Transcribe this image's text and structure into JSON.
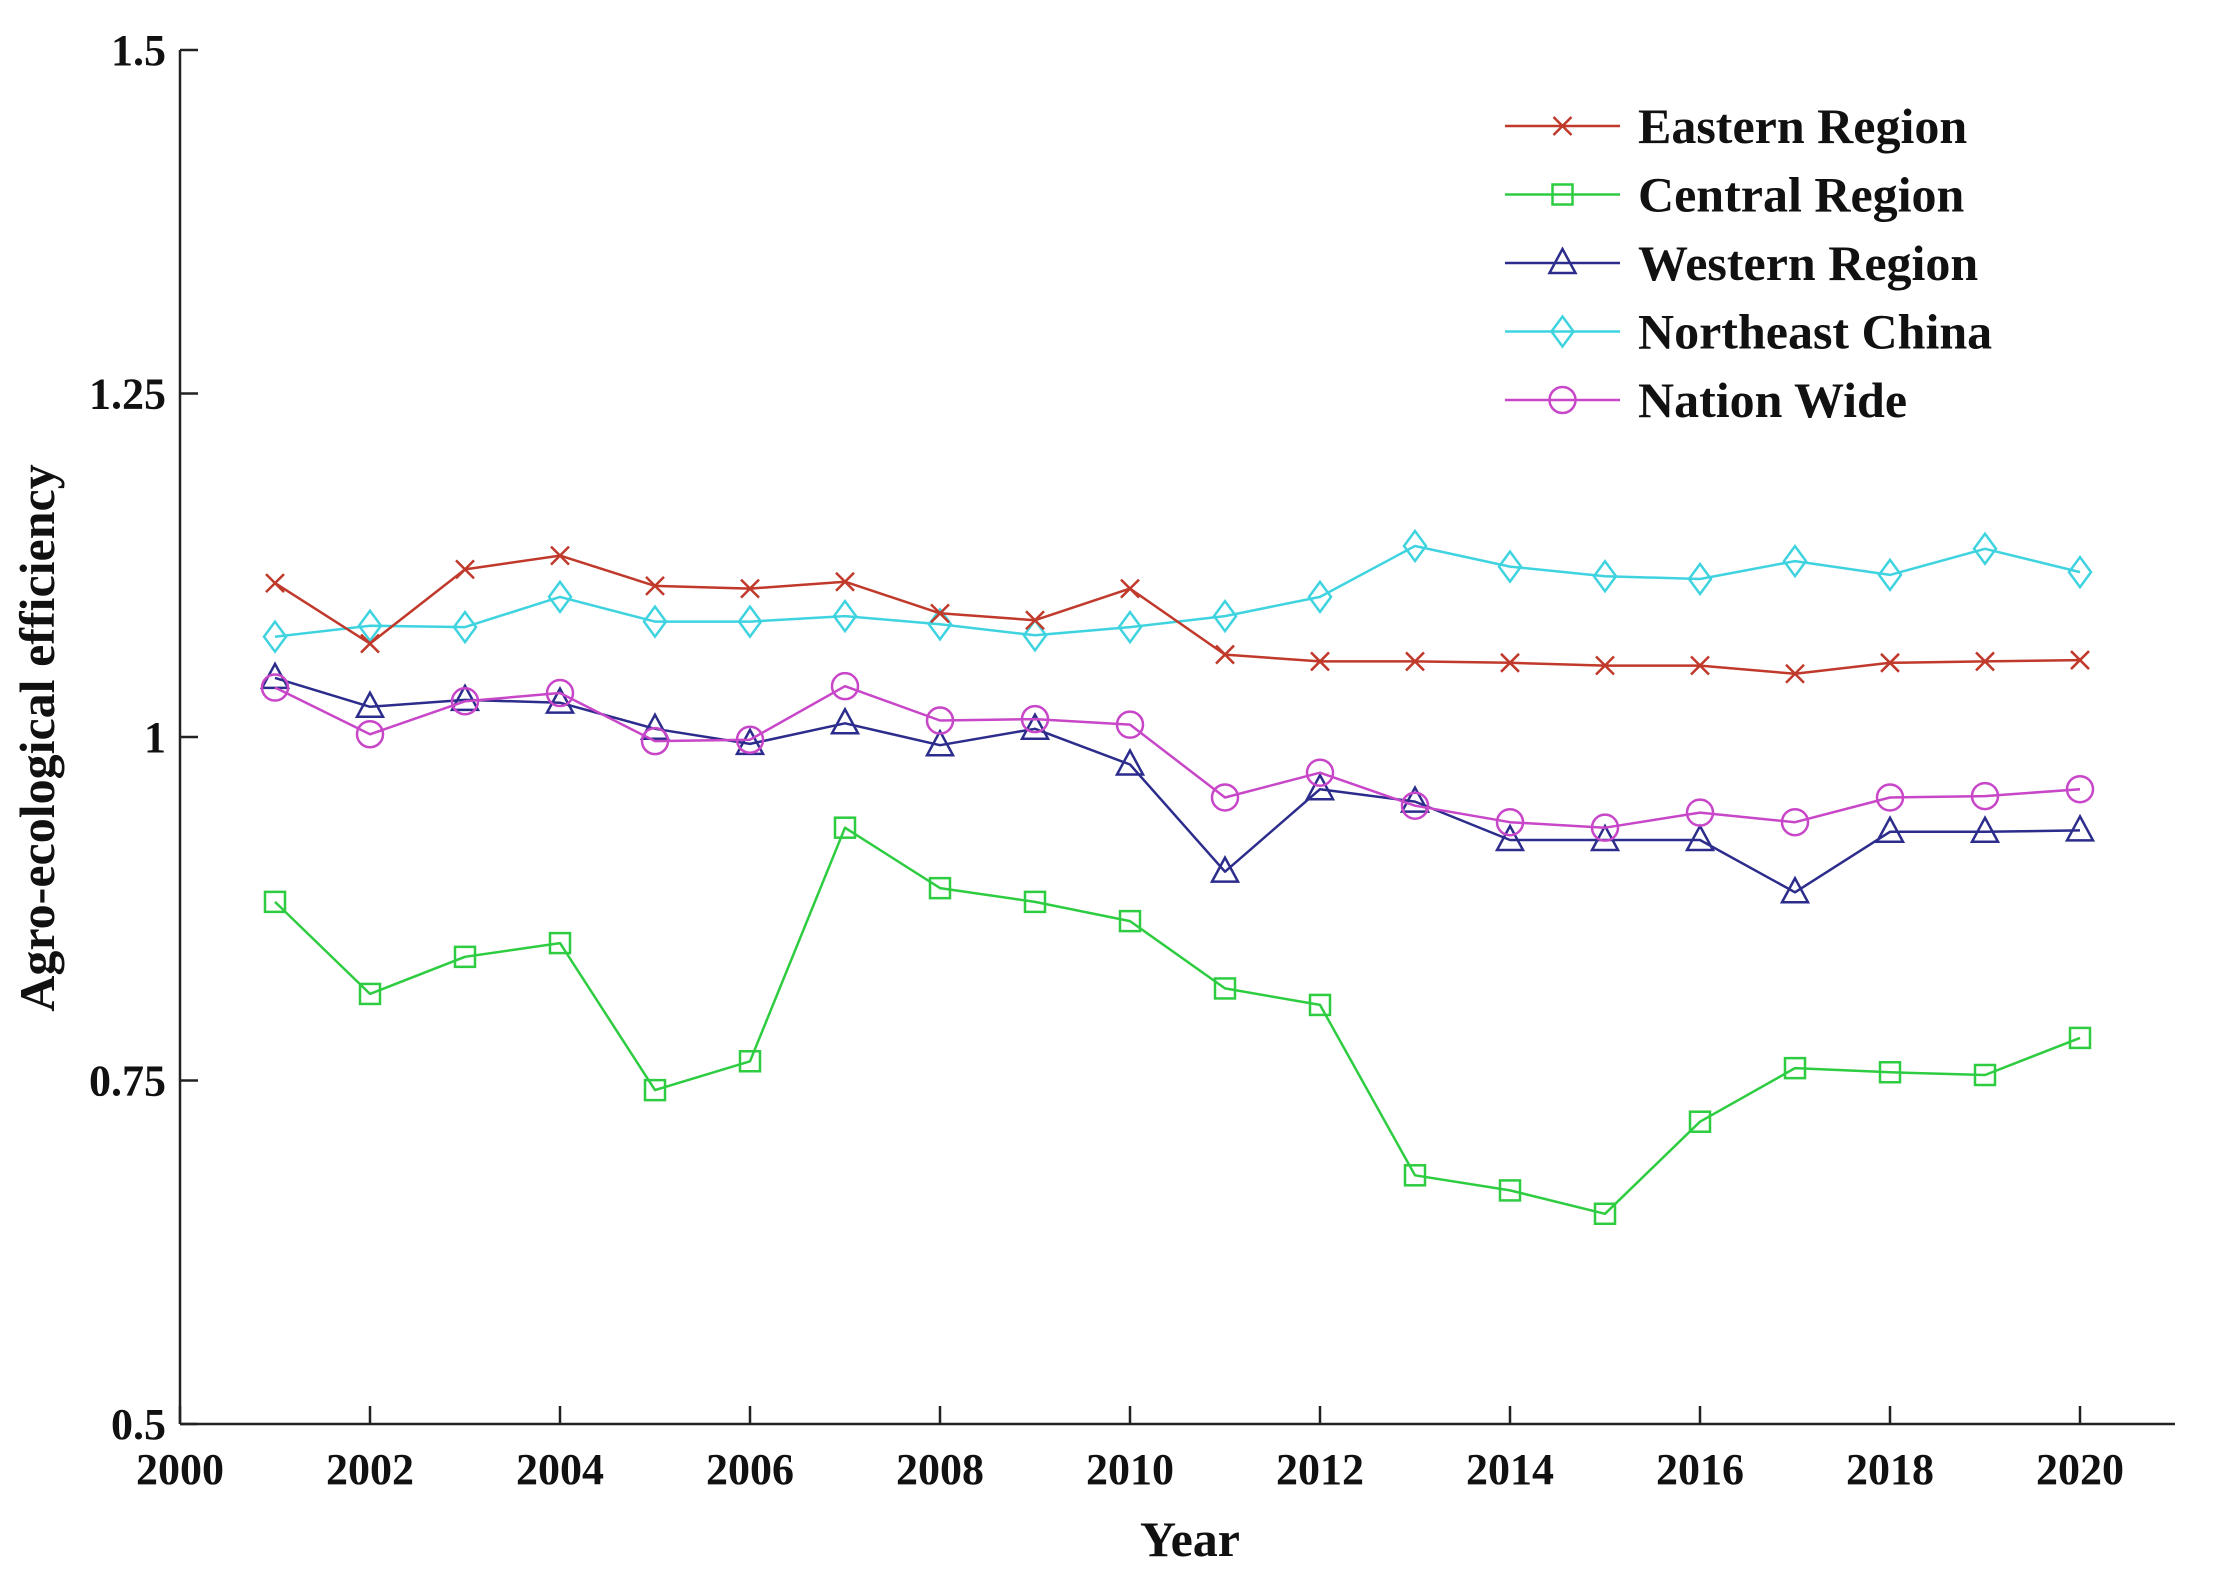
{
  "chart_data": {
    "type": "line",
    "title": "",
    "xlabel": "Year",
    "ylabel": "Agro-ecological efficiency",
    "xlim": [
      2000,
      2021
    ],
    "ylim": [
      0.5,
      1.5
    ],
    "x_ticks": [
      "2000",
      "2002",
      "2004",
      "2006",
      "2008",
      "2010",
      "2012",
      "2014",
      "2016",
      "2018",
      "2020"
    ],
    "y_ticks": [
      "0.5",
      "0.75",
      "1",
      "1.25",
      "1.5"
    ],
    "legend_position": "top-right",
    "grid": false,
    "x": [
      2001,
      2002,
      2003,
      2004,
      2005,
      2006,
      2007,
      2008,
      2009,
      2010,
      2011,
      2012,
      2013,
      2014,
      2015,
      2016,
      2017,
      2018,
      2019,
      2020
    ],
    "series": [
      {
        "name": "Eastern Region",
        "color": "#c0392b",
        "marker": "x",
        "values": [
          1.112,
          1.068,
          1.122,
          1.132,
          1.11,
          1.108,
          1.113,
          1.09,
          1.085,
          1.108,
          1.06,
          1.055,
          1.055,
          1.054,
          1.052,
          1.052,
          1.046,
          1.054,
          1.055,
          1.056
        ]
      },
      {
        "name": "Central Region",
        "color": "#2ecc40",
        "marker": "square",
        "values": [
          0.88,
          0.813,
          0.84,
          0.85,
          0.743,
          0.764,
          0.934,
          0.89,
          0.88,
          0.866,
          0.817,
          0.805,
          0.681,
          0.67,
          0.653,
          0.72,
          0.759,
          0.756,
          0.754,
          0.781
        ]
      },
      {
        "name": "Western Region",
        "color": "#2c2c8c",
        "marker": "triangle",
        "values": [
          1.043,
          1.022,
          1.027,
          1.025,
          1.006,
          0.995,
          1.01,
          0.994,
          1.006,
          0.98,
          0.902,
          0.962,
          0.953,
          0.925,
          0.925,
          0.925,
          0.887,
          0.931,
          0.931,
          0.932
        ]
      },
      {
        "name": "Northeast China",
        "color": "#3fd3e0",
        "marker": "diamond",
        "values": [
          1.073,
          1.081,
          1.08,
          1.102,
          1.084,
          1.084,
          1.088,
          1.082,
          1.074,
          1.08,
          1.088,
          1.102,
          1.139,
          1.124,
          1.117,
          1.115,
          1.128,
          1.118,
          1.137,
          1.12
        ]
      },
      {
        "name": "Nation Wide",
        "color": "#c846c8",
        "marker": "circle",
        "values": [
          1.036,
          1.002,
          1.026,
          1.032,
          0.997,
          0.998,
          1.037,
          1.012,
          1.013,
          1.009,
          0.956,
          0.974,
          0.95,
          0.938,
          0.934,
          0.945,
          0.938,
          0.956,
          0.957,
          0.962
        ]
      }
    ]
  }
}
